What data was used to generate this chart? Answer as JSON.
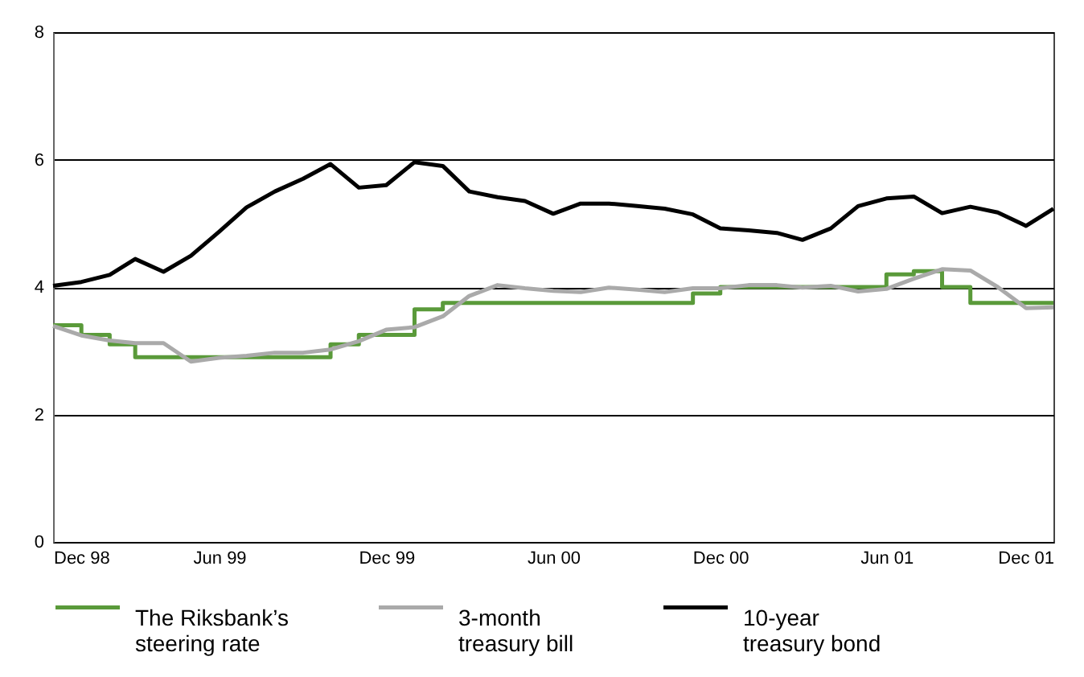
{
  "chart_data": {
    "type": "line",
    "x": [
      "1998-12",
      "1999-01",
      "1999-02",
      "1999-03",
      "1999-04",
      "1999-05",
      "1999-06",
      "1999-07",
      "1999-08",
      "1999-09",
      "1999-10",
      "1999-11",
      "1999-12",
      "2000-01",
      "2000-02",
      "2000-03",
      "2000-04",
      "2000-05",
      "2000-06",
      "2000-07",
      "2000-08",
      "2000-09",
      "2000-10",
      "2000-11",
      "2000-12",
      "2001-01",
      "2001-02",
      "2001-03",
      "2001-04",
      "2001-05",
      "2001-06",
      "2001-07",
      "2001-08",
      "2001-09",
      "2001-10",
      "2001-11",
      "2001-12"
    ],
    "series": [
      {
        "name": "The Riksbank’s steering rate",
        "type": "step",
        "color": "#5a9a3a",
        "values": [
          3.4,
          3.25,
          3.1,
          2.9,
          2.9,
          2.9,
          2.9,
          2.9,
          2.9,
          2.9,
          3.1,
          3.25,
          3.25,
          3.65,
          3.75,
          3.75,
          3.75,
          3.75,
          3.75,
          3.75,
          3.75,
          3.75,
          3.75,
          3.9,
          4.0,
          4.0,
          4.0,
          4.0,
          4.0,
          4.0,
          4.2,
          4.25,
          4.0,
          3.75,
          3.75,
          3.75,
          3.75
        ]
      },
      {
        "name": "3-month treasury bill",
        "color": "#aaaaaa",
        "values": [
          3.39,
          3.24,
          3.16,
          3.12,
          3.12,
          2.83,
          2.89,
          2.92,
          2.97,
          2.97,
          3.02,
          3.15,
          3.33,
          3.37,
          3.54,
          3.86,
          4.03,
          3.98,
          3.94,
          3.92,
          3.99,
          3.96,
          3.92,
          3.98,
          3.98,
          4.03,
          4.03,
          3.99,
          4.02,
          3.93,
          3.97,
          4.13,
          4.28,
          4.26,
          4.0,
          3.67,
          3.68
        ]
      },
      {
        "name": "10-year treasury bond",
        "color": "#000000",
        "values": [
          4.02,
          4.08,
          4.19,
          4.44,
          4.24,
          4.49,
          4.87,
          5.25,
          5.5,
          5.7,
          5.93,
          5.56,
          5.6,
          5.96,
          5.9,
          5.5,
          5.41,
          5.35,
          5.15,
          5.31,
          5.31,
          5.27,
          5.23,
          5.14,
          4.92,
          4.89,
          4.85,
          4.74,
          4.92,
          5.27,
          5.39,
          5.42,
          5.16,
          5.26,
          5.17,
          4.96,
          5.23
        ]
      }
    ],
    "xlim": [
      "1998-12",
      "2001-12"
    ],
    "xticks": [
      {
        "value": "1998-12",
        "label": "Dec 98"
      },
      {
        "value": "1999-06",
        "label": "Jun 99"
      },
      {
        "value": "1999-12",
        "label": "Dec 99"
      },
      {
        "value": "2000-06",
        "label": "Jun 00"
      },
      {
        "value": "2000-12",
        "label": "Dec 00"
      },
      {
        "value": "2001-06",
        "label": "Jun 01"
      },
      {
        "value": "2001-12",
        "label": "Dec 01"
      }
    ],
    "ylim": [
      0,
      8
    ],
    "yticks": [
      0,
      2,
      4,
      6,
      8
    ],
    "grid": "y",
    "legend": "bottom",
    "line_style": "solid",
    "marker": "none"
  }
}
